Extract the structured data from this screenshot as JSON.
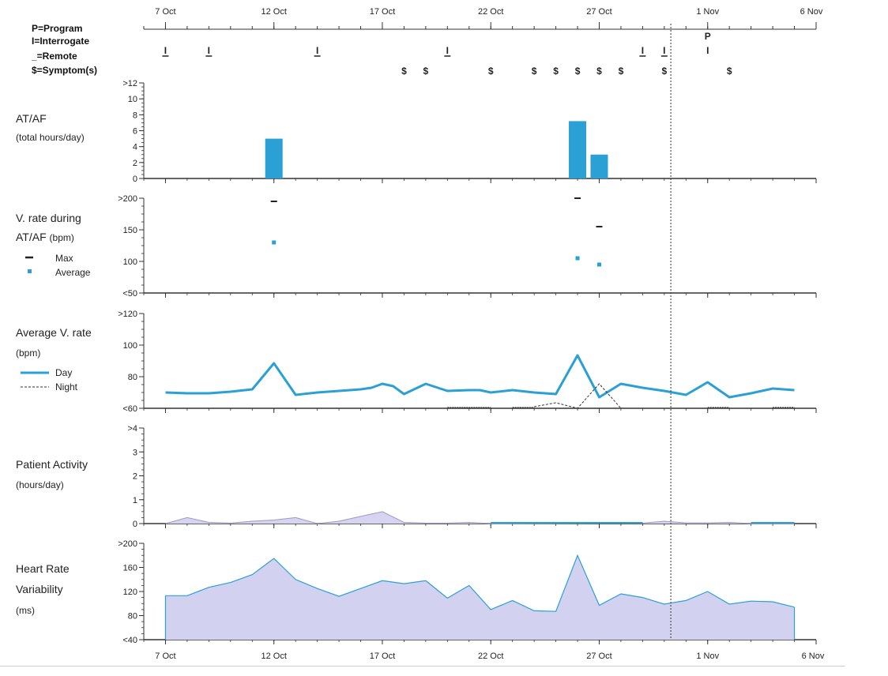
{
  "legend_key": {
    "program": "P=Program",
    "interrogate": "I=Interrogate",
    "remote": "_=Remote",
    "symptom": "$=Symptom(s)"
  },
  "panels": {
    "atf": {
      "title": "AT/AF",
      "unit": "(total hours/day)"
    },
    "vrate": {
      "title_line1": "V. rate during",
      "title_line2": "AT/AF",
      "unit": "(bpm)",
      "legend_max": "Max",
      "legend_avg": "Average"
    },
    "avgv": {
      "title": "Average V. rate",
      "unit": "(bpm)",
      "legend_day": "Day",
      "legend_night": "Night"
    },
    "activity": {
      "title": "Patient Activity",
      "unit": "(hours/day)"
    },
    "hrv": {
      "title_line1": "Heart Rate",
      "title_line2": "Variability",
      "unit": "(ms)"
    }
  },
  "colors": {
    "accent": "#2aa0d4",
    "hrv_fill": "#d3d1f0",
    "activity_fill": "#d6d4f1",
    "dark": "#333333"
  },
  "chart_data": [
    {
      "type": "timeline",
      "name": "events",
      "x_ticks": [
        "7 Oct",
        "12 Oct",
        "17 Oct",
        "22 Oct",
        "27 Oct",
        "1 Nov",
        "6 Nov"
      ],
      "x_range": [
        "2023-10-06",
        "2023-11-06"
      ],
      "interrogate_days": [
        "2023-10-07",
        "2023-10-09",
        "2023-10-14",
        "2023-10-20",
        "2023-10-29",
        "2023-10-30",
        "2023-11-01"
      ],
      "remote_days": [
        "2023-10-07",
        "2023-10-09",
        "2023-10-14",
        "2023-10-20",
        "2023-10-29",
        "2023-10-30"
      ],
      "program_days": [
        "2023-11-01"
      ],
      "symptom_days": [
        "2023-10-18",
        "2023-10-19",
        "2023-10-22",
        "2023-10-24",
        "2023-10-25",
        "2023-10-26",
        "2023-10-27",
        "2023-10-28",
        "2023-10-30",
        "2023-11-02"
      ],
      "event_labels": {
        "interrogate": "I",
        "program": "P",
        "symptom": "$"
      },
      "marker_day": "2023-10-30"
    },
    {
      "type": "bar",
      "name": "atf",
      "y_ticks": [
        "0",
        "2",
        "4",
        "6",
        "8",
        "10",
        ">12"
      ],
      "ylim": [
        0,
        12
      ],
      "points": [
        {
          "x": "2023-10-12",
          "y": 5.0
        },
        {
          "x": "2023-10-26",
          "y": 7.2
        },
        {
          "x": "2023-10-27",
          "y": 3.0
        }
      ]
    },
    {
      "type": "scatter",
      "name": "vrate",
      "y_ticks": [
        "<50",
        "100",
        "150",
        ">200"
      ],
      "ylim": [
        50,
        200
      ],
      "series": [
        {
          "name": "Max",
          "points": [
            {
              "x": "2023-10-12",
              "y": 195
            },
            {
              "x": "2023-10-26",
              "y": 200
            },
            {
              "x": "2023-10-27",
              "y": 155
            }
          ]
        },
        {
          "name": "Average",
          "points": [
            {
              "x": "2023-10-12",
              "y": 130
            },
            {
              "x": "2023-10-26",
              "y": 105
            },
            {
              "x": "2023-10-27",
              "y": 95
            }
          ]
        }
      ]
    },
    {
      "type": "line",
      "name": "avgv",
      "y_ticks": [
        "<60",
        "80",
        "100",
        ">120"
      ],
      "ylim": [
        60,
        120
      ],
      "series": [
        {
          "name": "Day",
          "points": [
            {
              "x": "2023-10-07",
              "y": 70
            },
            {
              "x": "2023-10-08",
              "y": 69.5
            },
            {
              "x": "2023-10-09",
              "y": 69.5
            },
            {
              "x": "2023-10-10",
              "y": 70.5
            },
            {
              "x": "2023-10-11",
              "y": 72
            },
            {
              "x": "2023-10-12",
              "y": 88.5
            },
            {
              "x": "2023-10-13",
              "y": 68.5
            },
            {
              "x": "2023-10-14",
              "y": 70
            },
            {
              "x": "2023-10-15",
              "y": 71
            },
            {
              "x": "2023-10-16",
              "y": 72
            },
            {
              "x": "2023-10-16.5",
              "y": 73
            },
            {
              "x": "2023-10-17",
              "y": 75.5
            },
            {
              "x": "2023-10-17.5",
              "y": 74
            },
            {
              "x": "2023-10-18",
              "y": 69
            },
            {
              "x": "2023-10-19",
              "y": 75.5
            },
            {
              "x": "2023-10-20",
              "y": 71
            },
            {
              "x": "2023-10-21",
              "y": 71.5
            },
            {
              "x": "2023-10-21.5",
              "y": 71.5
            },
            {
              "x": "2023-10-22",
              "y": 70
            },
            {
              "x": "2023-10-23",
              "y": 71.5
            },
            {
              "x": "2023-10-24",
              "y": 70
            },
            {
              "x": "2023-10-25",
              "y": 69
            },
            {
              "x": "2023-10-26",
              "y": 93.5
            },
            {
              "x": "2023-10-27",
              "y": 67
            },
            {
              "x": "2023-10-28",
              "y": 75.5
            },
            {
              "x": "2023-10-29",
              "y": 73
            },
            {
              "x": "2023-10-30",
              "y": 71
            },
            {
              "x": "2023-10-31",
              "y": 68.5
            },
            {
              "x": "2023-11-01",
              "y": 76.5
            },
            {
              "x": "2023-11-02",
              "y": 67
            },
            {
              "x": "2023-11-03",
              "y": 69.5
            },
            {
              "x": "2023-11-04",
              "y": 72.5
            },
            {
              "x": "2023-11-05",
              "y": 71.5
            }
          ]
        },
        {
          "name": "Night",
          "points": [
            {
              "x": "2023-10-24",
              "y": 61
            },
            {
              "x": "2023-10-25",
              "y": 63.5
            },
            {
              "x": "2023-10-26",
              "y": 60
            },
            {
              "x": "2023-10-27",
              "y": 75.5
            },
            {
              "x": "2023-10-28",
              "y": 60
            }
          ]
        }
      ]
    },
    {
      "type": "area",
      "name": "activity",
      "y_ticks": [
        "0",
        "1",
        "2",
        "3",
        ">4"
      ],
      "ylim": [
        0,
        4
      ],
      "points": [
        {
          "x": "2023-10-07",
          "y": 0
        },
        {
          "x": "2023-10-08",
          "y": 0.25
        },
        {
          "x": "2023-10-09",
          "y": 0.05
        },
        {
          "x": "2023-10-10",
          "y": 0.02
        },
        {
          "x": "2023-10-11",
          "y": 0.1
        },
        {
          "x": "2023-10-12",
          "y": 0.15
        },
        {
          "x": "2023-10-13",
          "y": 0.25
        },
        {
          "x": "2023-10-14",
          "y": 0
        },
        {
          "x": "2023-10-15",
          "y": 0.1
        },
        {
          "x": "2023-10-16",
          "y": 0.3
        },
        {
          "x": "2023-10-17",
          "y": 0.5
        },
        {
          "x": "2023-10-18",
          "y": 0.05
        },
        {
          "x": "2023-10-19",
          "y": 0.02
        },
        {
          "x": "2023-10-20",
          "y": 0.02
        },
        {
          "x": "2023-10-21",
          "y": 0.05
        },
        {
          "x": "2023-10-22",
          "y": 0.0
        },
        {
          "x": "2023-10-29",
          "y": 0.02
        },
        {
          "x": "2023-10-30",
          "y": 0.1
        },
        {
          "x": "2023-10-31",
          "y": 0.03
        },
        {
          "x": "2023-11-01",
          "y": 0.03
        },
        {
          "x": "2023-11-02",
          "y": 0.05
        },
        {
          "x": "2023-11-03",
          "y": 0
        },
        {
          "x": "2023-11-05",
          "y": 0
        }
      ]
    },
    {
      "type": "area",
      "name": "hrv",
      "y_ticks": [
        "<40",
        "80",
        "120",
        "160",
        ">200"
      ],
      "x_ticks": [
        "7 Oct",
        "12 Oct",
        "17 Oct",
        "22 Oct",
        "27 Oct",
        "1 Nov",
        "6 Nov"
      ],
      "ylim": [
        40,
        200
      ],
      "points": [
        {
          "x": "2023-10-07",
          "y": 113
        },
        {
          "x": "2023-10-08",
          "y": 113
        },
        {
          "x": "2023-10-09",
          "y": 127
        },
        {
          "x": "2023-10-10",
          "y": 135
        },
        {
          "x": "2023-10-11",
          "y": 148
        },
        {
          "x": "2023-10-12",
          "y": 175
        },
        {
          "x": "2023-10-13",
          "y": 140
        },
        {
          "x": "2023-10-14",
          "y": 125
        },
        {
          "x": "2023-10-15",
          "y": 112
        },
        {
          "x": "2023-10-16",
          "y": 125
        },
        {
          "x": "2023-10-17",
          "y": 138
        },
        {
          "x": "2023-10-18",
          "y": 133
        },
        {
          "x": "2023-10-19",
          "y": 138
        },
        {
          "x": "2023-10-20",
          "y": 109
        },
        {
          "x": "2023-10-21",
          "y": 130
        },
        {
          "x": "2023-10-22",
          "y": 90
        },
        {
          "x": "2023-10-23",
          "y": 105
        },
        {
          "x": "2023-10-24",
          "y": 88
        },
        {
          "x": "2023-10-25",
          "y": 87
        },
        {
          "x": "2023-10-26",
          "y": 180
        },
        {
          "x": "2023-10-27",
          "y": 97
        },
        {
          "x": "2023-10-28",
          "y": 116
        },
        {
          "x": "2023-10-29",
          "y": 110
        },
        {
          "x": "2023-10-30",
          "y": 99
        },
        {
          "x": "2023-10-31",
          "y": 105
        },
        {
          "x": "2023-11-01",
          "y": 120
        },
        {
          "x": "2023-11-02",
          "y": 99
        },
        {
          "x": "2023-11-03",
          "y": 104
        },
        {
          "x": "2023-11-04",
          "y": 103
        },
        {
          "x": "2023-11-05",
          "y": 94
        }
      ]
    }
  ]
}
